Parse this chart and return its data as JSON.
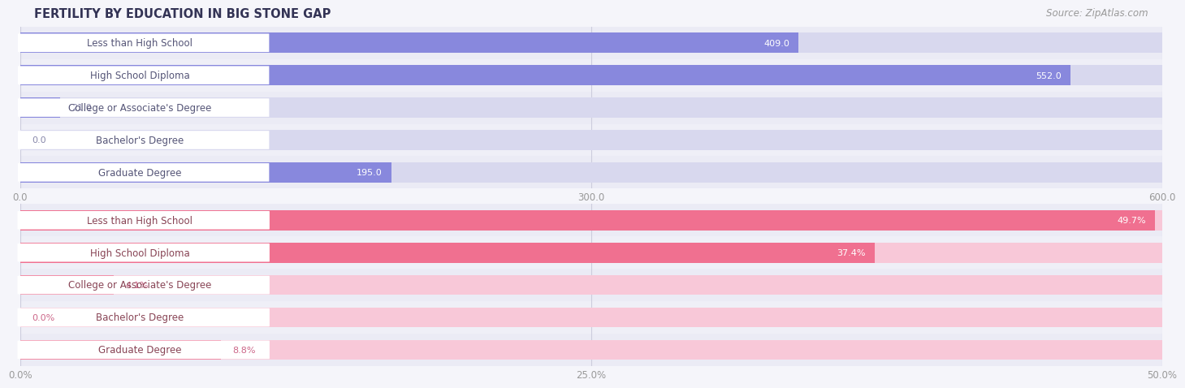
{
  "title": "FERTILITY BY EDUCATION IN BIG STONE GAP",
  "source": "Source: ZipAtlas.com",
  "top_chart": {
    "categories": [
      "Less than High School",
      "High School Diploma",
      "College or Associate's Degree",
      "Bachelor's Degree",
      "Graduate Degree"
    ],
    "values": [
      409.0,
      552.0,
      21.0,
      0.0,
      195.0
    ],
    "bar_color": "#8888dd",
    "bar_bg_color": "#d8d8ee",
    "label_bg_color": "#ffffff",
    "label_text_color": "#555577",
    "value_color_inside": "#ffffff",
    "value_color_outside": "#8888aa",
    "xlim": [
      0,
      600
    ],
    "xticks": [
      0.0,
      300.0,
      600.0
    ],
    "is_percent": false
  },
  "bottom_chart": {
    "categories": [
      "Less than High School",
      "High School Diploma",
      "College or Associate's Degree",
      "Bachelor's Degree",
      "Graduate Degree"
    ],
    "values": [
      49.7,
      37.4,
      4.1,
      0.0,
      8.8
    ],
    "bar_color": "#f07090",
    "bar_bg_color": "#f8c8d8",
    "label_bg_color": "#ffffff",
    "label_text_color": "#884455",
    "value_color_inside": "#ffffff",
    "value_color_outside": "#cc6688",
    "xlim": [
      0,
      50
    ],
    "xticks": [
      0.0,
      25.0,
      50.0
    ],
    "is_percent": true
  },
  "fig_bg_color": "#f5f5fa",
  "row_bg_color": "#ebebf5",
  "title_fontsize": 10.5,
  "label_fontsize": 8.5,
  "value_fontsize": 8.0,
  "tick_fontsize": 8.5,
  "source_fontsize": 8.5,
  "bar_height": 0.62,
  "title_color": "#333355",
  "tick_color": "#999999",
  "source_color": "#999999",
  "grid_color": "#ccccdd"
}
